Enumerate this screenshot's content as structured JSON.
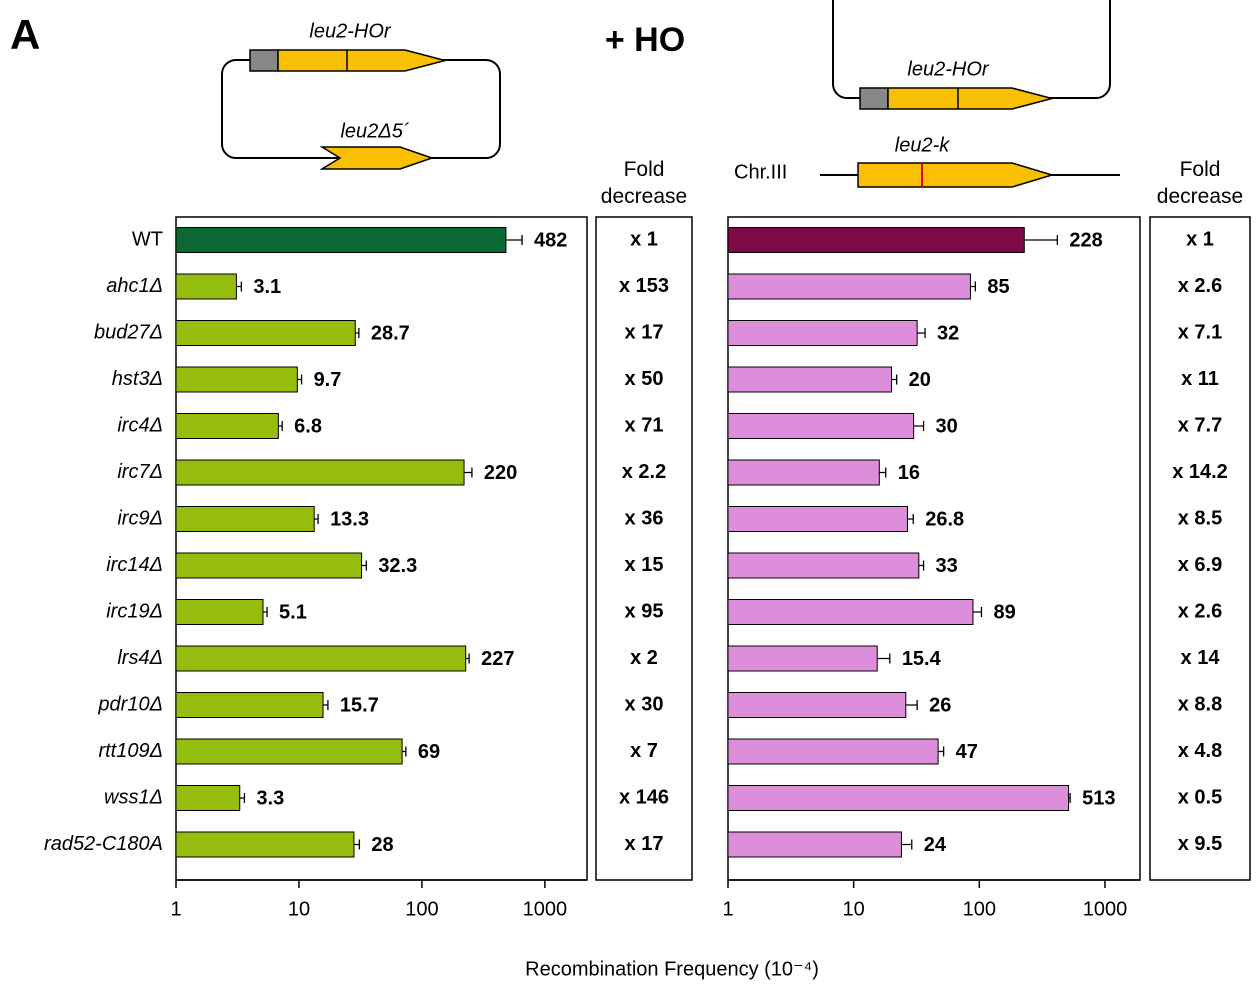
{
  "panel_label": "A",
  "condition": "+ HO",
  "left_diagram": {
    "gene_label": "leu2-HOr",
    "donor_label": "leu2Δ5´"
  },
  "right_diagram": {
    "gene_label": "leu2-HOr",
    "chromosome_gene_label": "leu2-k",
    "chromosome_label": "Chr.III"
  },
  "x_axis_label": "Recombination Frequency (10⁻⁴)",
  "chart_data": [
    {
      "type": "bar",
      "orientation": "horizontal",
      "log_scale": true,
      "categories": [
        "WT",
        "ahc1Δ",
        "bud27Δ",
        "hst3Δ",
        "irc4Δ",
        "irc7Δ",
        "irc9Δ",
        "irc14Δ",
        "irc19Δ",
        "lrs4Δ",
        "pdr10Δ",
        "rtt109Δ",
        "wss1Δ",
        "rad52-C180A"
      ],
      "values": [
        482,
        3.1,
        28.7,
        9.7,
        6.8,
        220,
        13.3,
        32.3,
        5.1,
        227,
        15.7,
        69,
        3.3,
        28
      ],
      "errors": [
        170,
        0.3,
        2,
        0.8,
        0.5,
        35,
        1,
        3,
        0.4,
        15,
        1.5,
        5,
        0.3,
        3
      ],
      "colors": [
        "#0b6834",
        "#94bd0e",
        "#94bd0e",
        "#94bd0e",
        "#94bd0e",
        "#94bd0e",
        "#94bd0e",
        "#94bd0e",
        "#94bd0e",
        "#94bd0e",
        "#94bd0e",
        "#94bd0e",
        "#94bd0e",
        "#94bd0e"
      ],
      "xlim": [
        1,
        2200
      ],
      "xticks": [
        1,
        10,
        100,
        1000
      ],
      "fold_decrease": {
        "title": "Fold decrease",
        "labels": [
          "x 1",
          "x 153",
          "x 17",
          "x 50",
          "x 71",
          "x 2.2",
          "x 36",
          "x 15",
          "x 95",
          "x 2",
          "x 30",
          "x 7",
          "x 146",
          "x 17"
        ]
      }
    },
    {
      "type": "bar",
      "orientation": "horizontal",
      "log_scale": true,
      "categories": [
        null,
        null,
        null,
        null,
        null,
        null,
        null,
        null,
        null,
        null,
        null,
        null,
        null,
        null
      ],
      "values": [
        228,
        85,
        32,
        20,
        30,
        16,
        26.8,
        33,
        89,
        15.4,
        26,
        47,
        513,
        24
      ],
      "errors": [
        190,
        8,
        5,
        2,
        6,
        2,
        3,
        3,
        15,
        4,
        6,
        5,
        15,
        5
      ],
      "colors": [
        "#7b0a46",
        "#dd8edb",
        "#dd8edb",
        "#dd8edb",
        "#dd8edb",
        "#dd8edb",
        "#dd8edb",
        "#dd8edb",
        "#dd8edb",
        "#dd8edb",
        "#dd8edb",
        "#dd8edb",
        "#dd8edb",
        "#dd8edb"
      ],
      "xlim": [
        1,
        1900
      ],
      "xticks": [
        1,
        10,
        100,
        1000
      ],
      "fold_decrease": {
        "title": "Fold decrease",
        "labels": [
          "x 1",
          "x 2.6",
          "x 7.1",
          "x 11",
          "x 7.7",
          "x 14.2",
          "x 8.5",
          "x 6.9",
          "x 2.6",
          "x 14",
          "x 8.8",
          "x 4.8",
          "x 0.5",
          "x 9.5"
        ]
      }
    }
  ]
}
